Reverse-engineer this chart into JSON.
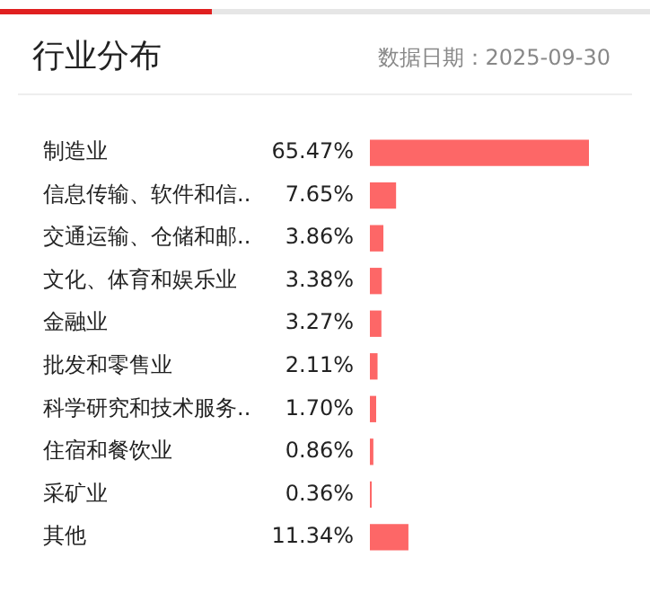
{
  "chart_data": {
    "type": "bar",
    "orientation": "horizontal",
    "title": "行业分布",
    "subtitle": "数据日期：2025-09-30",
    "categories": [
      "制造业",
      "信息传输、软件和信..",
      "交通运输、仓储和邮..",
      "文化、体育和娱乐业",
      "金融业",
      "批发和零售业",
      "科学研究和技术服务..",
      "住宿和餐饮业",
      "采矿业",
      "其他"
    ],
    "values": [
      65.47,
      7.65,
      3.86,
      3.38,
      3.27,
      2.11,
      1.7,
      0.86,
      0.36,
      11.34
    ],
    "value_labels": [
      "65.47%",
      "7.65%",
      "3.86%",
      "3.38%",
      "3.27%",
      "2.11%",
      "1.70%",
      "0.86%",
      "0.36%",
      "11.34%"
    ],
    "color": "#fd6767"
  }
}
